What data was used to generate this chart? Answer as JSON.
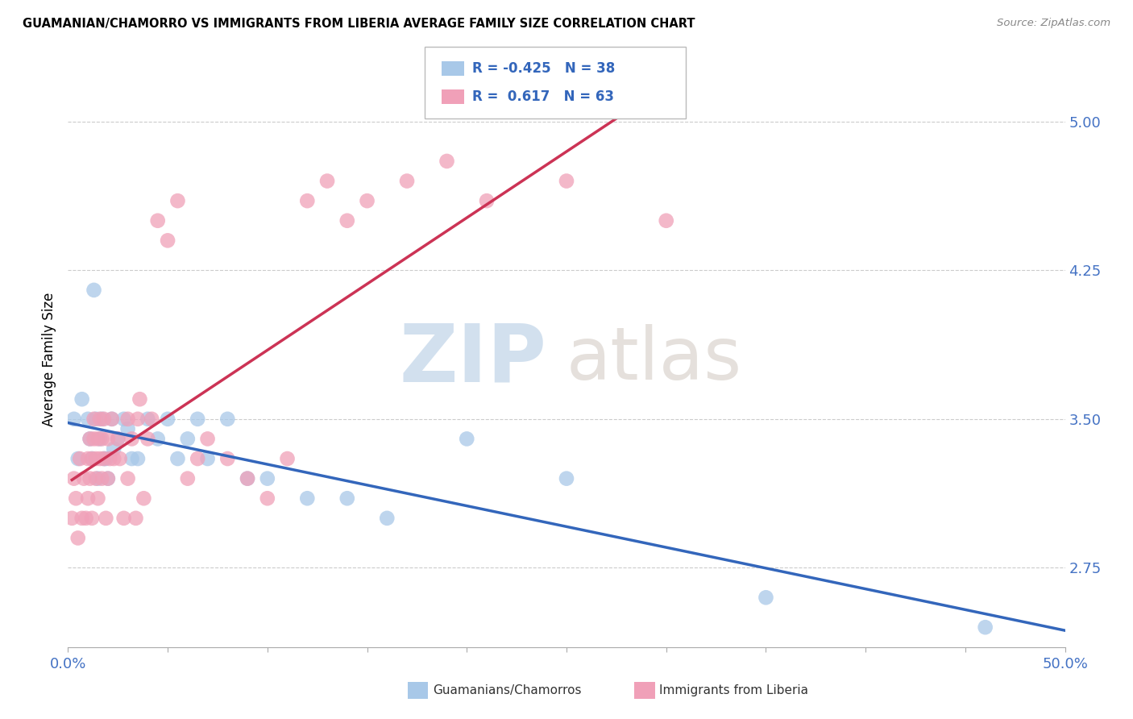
{
  "title": "GUAMANIAN/CHAMORRO VS IMMIGRANTS FROM LIBERIA AVERAGE FAMILY SIZE CORRELATION CHART",
  "source": "Source: ZipAtlas.com",
  "ylabel": "Average Family Size",
  "yticks": [
    2.75,
    3.5,
    4.25,
    5.0
  ],
  "xlim": [
    0.0,
    50.0
  ],
  "ylim": [
    2.35,
    5.25
  ],
  "blue_scatter_color": "#a8c8e8",
  "blue_line_color": "#3366bb",
  "pink_scatter_color": "#f0a0b8",
  "pink_line_color": "#cc3355",
  "blue_R": -0.425,
  "blue_N": 38,
  "pink_R": 0.617,
  "pink_N": 63,
  "blue_x": [
    0.3,
    0.5,
    0.7,
    1.0,
    1.2,
    1.3,
    1.5,
    1.6,
    1.7,
    1.8,
    2.0,
    2.2,
    2.5,
    2.8,
    3.0,
    3.5,
    4.0,
    4.5,
    5.0,
    5.5,
    6.0,
    7.0,
    8.0,
    9.0,
    10.0,
    12.0,
    14.0,
    16.0,
    20.0,
    25.0,
    35.0,
    46.0,
    1.1,
    1.4,
    1.9,
    2.3,
    3.2,
    6.5
  ],
  "blue_y": [
    3.5,
    3.3,
    3.6,
    3.5,
    3.3,
    4.15,
    3.2,
    3.4,
    3.5,
    3.3,
    3.2,
    3.5,
    3.4,
    3.5,
    3.45,
    3.3,
    3.5,
    3.4,
    3.5,
    3.3,
    3.4,
    3.3,
    3.5,
    3.2,
    3.2,
    3.1,
    3.1,
    3.0,
    3.4,
    3.2,
    2.6,
    2.45,
    3.4,
    3.5,
    3.3,
    3.35,
    3.3,
    3.5
  ],
  "pink_x": [
    0.2,
    0.3,
    0.4,
    0.5,
    0.6,
    0.7,
    0.8,
    0.9,
    1.0,
    1.0,
    1.1,
    1.1,
    1.2,
    1.2,
    1.3,
    1.3,
    1.4,
    1.4,
    1.5,
    1.5,
    1.6,
    1.6,
    1.7,
    1.7,
    1.8,
    1.8,
    1.9,
    2.0,
    2.0,
    2.1,
    2.2,
    2.3,
    2.5,
    2.6,
    2.8,
    3.0,
    3.0,
    3.2,
    3.4,
    3.5,
    3.6,
    3.8,
    4.0,
    4.2,
    4.5,
    5.0,
    5.5,
    6.0,
    6.5,
    7.0,
    8.0,
    9.0,
    10.0,
    11.0,
    12.0,
    13.0,
    14.0,
    15.0,
    17.0,
    19.0,
    21.0,
    25.0,
    30.0
  ],
  "pink_y": [
    3.0,
    3.2,
    3.1,
    2.9,
    3.3,
    3.0,
    3.2,
    3.0,
    3.1,
    3.3,
    3.4,
    3.2,
    3.3,
    3.0,
    3.5,
    3.4,
    3.2,
    3.3,
    3.4,
    3.1,
    3.5,
    3.3,
    3.4,
    3.2,
    3.5,
    3.3,
    3.0,
    3.4,
    3.2,
    3.3,
    3.5,
    3.3,
    3.4,
    3.3,
    3.0,
    3.5,
    3.2,
    3.4,
    3.0,
    3.5,
    3.6,
    3.1,
    3.4,
    3.5,
    4.5,
    4.4,
    4.6,
    3.2,
    3.3,
    3.4,
    3.3,
    3.2,
    3.1,
    3.3,
    4.6,
    4.7,
    4.5,
    4.6,
    4.7,
    4.8,
    4.6,
    4.7,
    4.5
  ],
  "axis_color": "#4472c4",
  "grid_color": "#cccccc",
  "text_color_dark": "#333333",
  "source_color": "#888888",
  "legend_text_color": "#3366bb"
}
